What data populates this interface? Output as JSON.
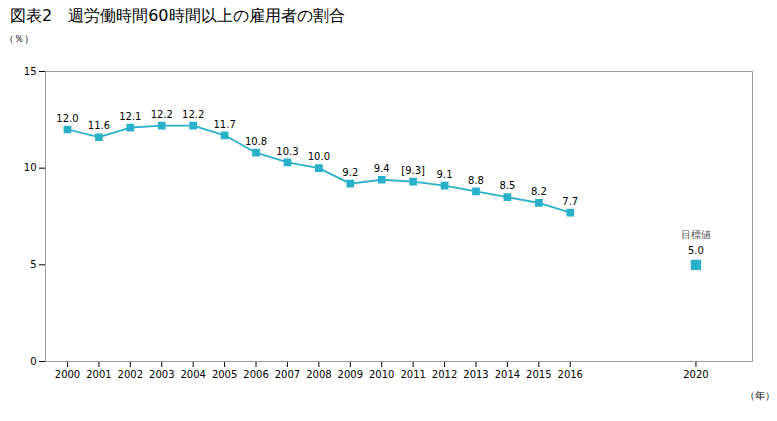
{
  "chart_data": {
    "type": "line",
    "title": "図表2　週労働時間60時間以上の雇用者の割合",
    "ylabel": "（％）",
    "xlabel": "（年）",
    "x": [
      2000,
      2001,
      2002,
      2003,
      2004,
      2005,
      2006,
      2007,
      2008,
      2009,
      2010,
      2011,
      2012,
      2013,
      2014,
      2015,
      2016
    ],
    "values": [
      12.0,
      11.6,
      12.1,
      12.2,
      12.2,
      11.7,
      10.8,
      10.3,
      10.0,
      9.2,
      9.4,
      9.3,
      9.1,
      8.8,
      8.5,
      8.2,
      7.7
    ],
    "value_labels": [
      "12.0",
      "11.6",
      "12.1",
      "12.2",
      "12.2",
      "11.7",
      "10.8",
      "10.3",
      "10.0",
      "9.2",
      "9.4",
      "[9.3]",
      "9.1",
      "8.8",
      "8.5",
      "8.2",
      "7.7"
    ],
    "data_labels": true,
    "color": "#2ab0c8",
    "marker": "square",
    "target": {
      "x": 2020,
      "value": 5.0,
      "value_label": "5.0",
      "color": "#2ab0c8",
      "marker": "square"
    },
    "annotations": [
      {
        "x": 2020,
        "y": 5.0,
        "text": "目標値"
      }
    ],
    "xlim": [
      1999.3,
      2021.8
    ],
    "xticks": [
      2000,
      2001,
      2002,
      2003,
      2004,
      2005,
      2006,
      2007,
      2008,
      2009,
      2010,
      2011,
      2012,
      2013,
      2014,
      2015,
      2016,
      2020
    ],
    "ylim": [
      0,
      15
    ],
    "yticks": [
      0,
      5,
      10,
      15
    ],
    "grid": false
  }
}
